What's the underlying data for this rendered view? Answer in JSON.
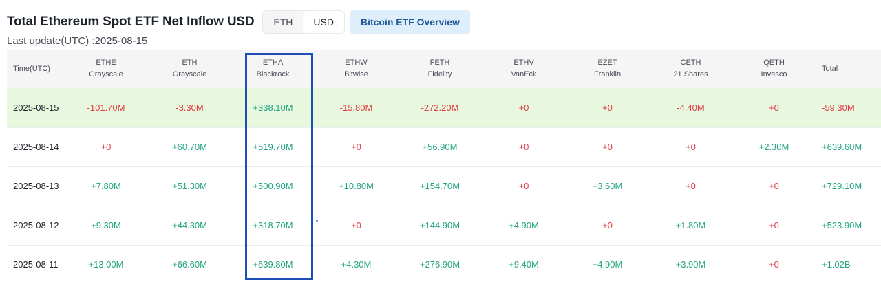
{
  "header": {
    "title": "Total Ethereum Spot ETF Net Inflow USD",
    "tabs": [
      {
        "label": "ETH",
        "active": false
      },
      {
        "label": "USD",
        "active": true
      }
    ],
    "overview_button": "Bitcoin ETF Overview",
    "last_update": "Last update(UTC) :2025-08-15"
  },
  "table": {
    "columns": [
      {
        "code": "Time(UTC)",
        "issuer": ""
      },
      {
        "code": "ETHE",
        "issuer": "Grayscale"
      },
      {
        "code": "ETH",
        "issuer": "Grayscale"
      },
      {
        "code": "ETHA",
        "issuer": "Blackrock"
      },
      {
        "code": "ETHW",
        "issuer": "Bitwise"
      },
      {
        "code": "FETH",
        "issuer": "Fidelity"
      },
      {
        "code": "ETHV",
        "issuer": "VanEck"
      },
      {
        "code": "EZET",
        "issuer": "Franklin"
      },
      {
        "code": "CETH",
        "issuer": "21 Shares"
      },
      {
        "code": "QETH",
        "issuer": "Invesco"
      },
      {
        "code": "Total",
        "issuer": ""
      }
    ],
    "rows": [
      {
        "highlight": true,
        "cells": [
          "2025-08-15",
          "-101.70M",
          "-3.30M",
          "+338.10M",
          "-15.80M",
          "-272.20M",
          "+0",
          "+0",
          "-4.40M",
          "+0",
          "-59.30M"
        ]
      },
      {
        "highlight": false,
        "cells": [
          "2025-08-14",
          "+0",
          "+60.70M",
          "+519.70M",
          "+0",
          "+56.90M",
          "+0",
          "+0",
          "+0",
          "+2.30M",
          "+639.60M"
        ]
      },
      {
        "highlight": false,
        "cells": [
          "2025-08-13",
          "+7.80M",
          "+51.30M",
          "+500.90M",
          "+10.80M",
          "+154.70M",
          "+0",
          "+3.60M",
          "+0",
          "+0",
          "+729.10M"
        ]
      },
      {
        "highlight": false,
        "cells": [
          "2025-08-12",
          "+9.30M",
          "+44.30M",
          "+318.70M",
          "+0",
          "+144.90M",
          "+4.90M",
          "+0",
          "+1.80M",
          "+0",
          "+523.90M"
        ]
      },
      {
        "highlight": false,
        "cells": [
          "2025-08-11",
          "+13.00M",
          "+66.60M",
          "+639.80M",
          "+4.30M",
          "+276.90M",
          "+9.40M",
          "+4.90M",
          "+3.90M",
          "+0",
          "+1.02B"
        ]
      }
    ]
  },
  "colors": {
    "positive": "#20a482",
    "negative": "#e03b45",
    "highlight_row": "#e7f8de",
    "annotation_box": "#1d4db6"
  }
}
